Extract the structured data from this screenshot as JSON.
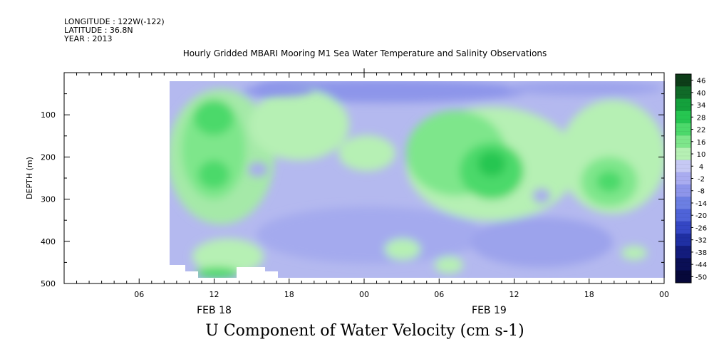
{
  "header": {
    "longitude": "LONGITUDE : 122W(-122)",
    "latitude": "LATITUDE : 36.8N",
    "year": "YEAR : 2013"
  },
  "chart_data": {
    "type": "heatmap",
    "title": "Hourly Gridded MBARI Mooring M1 Sea Water Temperature and Salinity Observations",
    "xlabel": "U Component of Water Velocity (cm s-1)",
    "ylabel": "DEPTH (m)",
    "ylim": [
      500,
      0
    ],
    "yticks": [
      100,
      200,
      300,
      400,
      500
    ],
    "xticks": [
      {
        "hour": 6,
        "label": "06"
      },
      {
        "hour": 12,
        "label": "12"
      },
      {
        "hour": 18,
        "label": "18"
      },
      {
        "hour": 24,
        "label": "00"
      },
      {
        "hour": 30,
        "label": "06"
      },
      {
        "hour": 36,
        "label": "12"
      },
      {
        "hour": 42,
        "label": "18"
      },
      {
        "hour": 48,
        "label": "00"
      }
    ],
    "date_labels": [
      {
        "hour": 12,
        "label": "FEB 18"
      },
      {
        "hour": 34,
        "label": "FEB 19"
      }
    ],
    "xlim_hours_from_feb18_00": [
      0,
      48
    ],
    "data_extent": {
      "start_hour": 8,
      "end_hour": 48,
      "depth_top": 20,
      "depth_bottom": 490
    },
    "colorbar": {
      "labels": [
        "46",
        "40",
        "34",
        "28",
        "22",
        "16",
        "10",
        "4",
        "-2",
        "-8",
        "-14",
        "-20",
        "-26",
        "-32",
        "-38",
        "-44",
        "-50"
      ],
      "colors": [
        "#0d3d18",
        "#106a28",
        "#14a13c",
        "#26c651",
        "#4cd96b",
        "#7ee68b",
        "#b6f0b4",
        "#c6c9f4",
        "#a9acf0",
        "#8d95ea",
        "#6c7fe3",
        "#4f63d8",
        "#3446c4",
        "#1f2fa3",
        "#131c7d",
        "#0a0f55",
        "#06083a"
      ]
    },
    "notes": "Filled contour of U velocity: greens positive, blues/lavenders negative, white where missing."
  }
}
